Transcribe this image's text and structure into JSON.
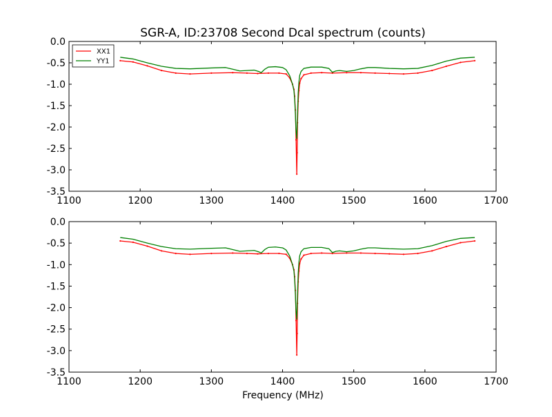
{
  "title": "SGR-A, ID:23708 Second Dcal spectrum (counts)",
  "xlabel": "Frequency (MHz)",
  "chart_data": [
    {
      "type": "line",
      "title": "SGR-A, ID:23708 Second Dcal spectrum (counts)",
      "xlabel": "",
      "ylabel": "",
      "xlim": [
        1100,
        1700
      ],
      "ylim": [
        -3.5,
        0.0
      ],
      "xticks": [
        "1100",
        "1200",
        "1300",
        "1400",
        "1500",
        "1600",
        "1700"
      ],
      "yticks": [
        "0.0",
        "-0.5",
        "-1.0",
        "-1.5",
        "-2.0",
        "-2.5",
        "-3.0",
        "-3.5"
      ],
      "grid": false,
      "legend": "top-left",
      "series": [
        {
          "name": "XX1",
          "color": "#ff0000",
          "x": [
            1172,
            1190,
            1210,
            1230,
            1250,
            1270,
            1300,
            1330,
            1350,
            1365,
            1380,
            1395,
            1405,
            1410,
            1414,
            1416,
            1417,
            1418,
            1419,
            1420,
            1420.5,
            1421,
            1422,
            1423,
            1424,
            1426,
            1430,
            1440,
            1455,
            1470,
            1490,
            1510,
            1530,
            1550,
            1570,
            1590,
            1610,
            1630,
            1650,
            1670
          ],
          "y": [
            -0.45,
            -0.48,
            -0.57,
            -0.68,
            -0.74,
            -0.76,
            -0.74,
            -0.73,
            -0.74,
            -0.75,
            -0.74,
            -0.74,
            -0.76,
            -0.85,
            -1.0,
            -1.12,
            -1.28,
            -1.6,
            -2.3,
            -3.1,
            -2.6,
            -1.9,
            -1.4,
            -1.15,
            -0.98,
            -0.87,
            -0.78,
            -0.74,
            -0.73,
            -0.74,
            -0.73,
            -0.73,
            -0.74,
            -0.75,
            -0.76,
            -0.74,
            -0.68,
            -0.58,
            -0.49,
            -0.45
          ]
        },
        {
          "name": "YY1",
          "color": "#008000",
          "x": [
            1172,
            1190,
            1210,
            1230,
            1250,
            1270,
            1300,
            1320,
            1330,
            1340,
            1350,
            1360,
            1366,
            1370,
            1375,
            1380,
            1390,
            1400,
            1405,
            1410,
            1414,
            1416,
            1417,
            1418,
            1419,
            1420,
            1421,
            1422,
            1423,
            1424,
            1426,
            1430,
            1440,
            1455,
            1465,
            1470,
            1475,
            1480,
            1490,
            1500,
            1510,
            1520,
            1530,
            1550,
            1570,
            1590,
            1610,
            1630,
            1650,
            1670
          ],
          "y": [
            -0.37,
            -0.41,
            -0.5,
            -0.58,
            -0.63,
            -0.64,
            -0.62,
            -0.61,
            -0.65,
            -0.69,
            -0.68,
            -0.67,
            -0.7,
            -0.73,
            -0.65,
            -0.6,
            -0.59,
            -0.61,
            -0.66,
            -0.8,
            -1.0,
            -1.15,
            -1.35,
            -1.7,
            -2.1,
            -2.27,
            -1.7,
            -1.2,
            -0.95,
            -0.8,
            -0.7,
            -0.63,
            -0.6,
            -0.6,
            -0.63,
            -0.72,
            -0.69,
            -0.68,
            -0.7,
            -0.68,
            -0.64,
            -0.61,
            -0.61,
            -0.63,
            -0.64,
            -0.63,
            -0.56,
            -0.46,
            -0.39,
            -0.37
          ]
        }
      ]
    },
    {
      "type": "line",
      "title": "",
      "xlabel": "Frequency (MHz)",
      "ylabel": "",
      "xlim": [
        1100,
        1700
      ],
      "ylim": [
        -3.5,
        0.0
      ],
      "xticks": [
        "1100",
        "1200",
        "1300",
        "1400",
        "1500",
        "1600",
        "1700"
      ],
      "yticks": [
        "0.0",
        "-0.5",
        "-1.0",
        "-1.5",
        "-2.0",
        "-2.5",
        "-3.0",
        "-3.5"
      ],
      "grid": false,
      "legend": "none",
      "series": [
        {
          "color": "#ff0000",
          "x": [
            1172,
            1190,
            1210,
            1230,
            1250,
            1270,
            1300,
            1330,
            1350,
            1365,
            1380,
            1395,
            1405,
            1410,
            1414,
            1416,
            1417,
            1418,
            1419,
            1420,
            1420.5,
            1421,
            1422,
            1423,
            1424,
            1426,
            1430,
            1440,
            1455,
            1470,
            1490,
            1510,
            1530,
            1550,
            1570,
            1590,
            1610,
            1630,
            1650,
            1670
          ],
          "y": [
            -0.45,
            -0.48,
            -0.57,
            -0.68,
            -0.74,
            -0.76,
            -0.74,
            -0.73,
            -0.74,
            -0.75,
            -0.74,
            -0.74,
            -0.76,
            -0.85,
            -1.0,
            -1.12,
            -1.28,
            -1.6,
            -2.3,
            -3.1,
            -2.6,
            -1.9,
            -1.4,
            -1.15,
            -0.98,
            -0.87,
            -0.78,
            -0.74,
            -0.73,
            -0.74,
            -0.73,
            -0.73,
            -0.74,
            -0.75,
            -0.76,
            -0.74,
            -0.68,
            -0.58,
            -0.49,
            -0.45
          ]
        },
        {
          "color": "#008000",
          "x": [
            1172,
            1190,
            1210,
            1230,
            1250,
            1270,
            1300,
            1320,
            1330,
            1340,
            1350,
            1360,
            1366,
            1370,
            1375,
            1380,
            1390,
            1400,
            1405,
            1410,
            1414,
            1416,
            1417,
            1418,
            1419,
            1420,
            1421,
            1422,
            1423,
            1424,
            1426,
            1430,
            1440,
            1455,
            1465,
            1470,
            1475,
            1480,
            1490,
            1500,
            1510,
            1520,
            1530,
            1550,
            1570,
            1590,
            1610,
            1630,
            1650,
            1670
          ],
          "y": [
            -0.37,
            -0.41,
            -0.5,
            -0.58,
            -0.63,
            -0.64,
            -0.62,
            -0.61,
            -0.65,
            -0.69,
            -0.68,
            -0.67,
            -0.7,
            -0.73,
            -0.65,
            -0.6,
            -0.59,
            -0.61,
            -0.66,
            -0.8,
            -1.0,
            -1.15,
            -1.35,
            -1.7,
            -2.1,
            -2.27,
            -1.7,
            -1.2,
            -0.95,
            -0.8,
            -0.7,
            -0.63,
            -0.6,
            -0.6,
            -0.63,
            -0.72,
            -0.69,
            -0.68,
            -0.7,
            -0.68,
            -0.64,
            -0.61,
            -0.61,
            -0.63,
            -0.64,
            -0.63,
            -0.56,
            -0.46,
            -0.39,
            -0.37
          ]
        }
      ]
    }
  ]
}
